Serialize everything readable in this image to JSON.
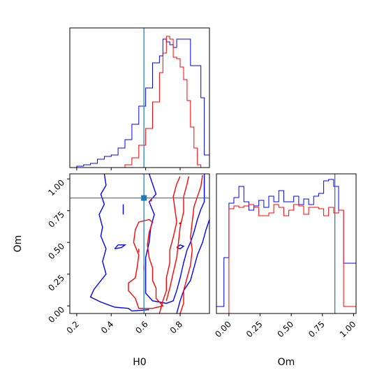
{
  "chart_data": {
    "type": "corner",
    "parameters": [
      "H0",
      "Om"
    ],
    "truths": {
      "H0": 0.59,
      "Om": 0.85
    },
    "colors": {
      "blue_series": "#0000ff",
      "red_series": "#ff0000",
      "truth": "#1f77b4"
    },
    "panels": [
      {
        "id": "h0-marginal",
        "type": "histogram-step",
        "xlim": [
          0.16,
          0.97
        ],
        "x_ticks": [
          0.2,
          0.4,
          0.6,
          0.8
        ],
        "show_tick_labels": false,
        "bin_edges": [
          0.16,
          0.2,
          0.24,
          0.28,
          0.32,
          0.36,
          0.4,
          0.44,
          0.48,
          0.52,
          0.56,
          0.6,
          0.64,
          0.68,
          0.7,
          0.72,
          0.74,
          0.76,
          0.78,
          0.8,
          0.82,
          0.84,
          0.86,
          0.88,
          0.9,
          0.92,
          0.94,
          0.97
        ],
        "series": [
          {
            "color": "blue",
            "values": [
              0,
              0.01,
              0.02,
              0.03,
              0.06,
              0.08,
              0.09,
              0.14,
              0.2,
              0.31,
              0.44,
              0.57,
              0.75,
              0.8,
              0.92,
              0.9,
              0.88,
              0.86,
              0.92,
              0.92,
              0.92,
              0.92,
              0.73,
              0.73,
              0.73,
              0.5,
              0.09
            ]
          },
          {
            "color": "red",
            "values": [
              0,
              0,
              0,
              0,
              0,
              0,
              0,
              0,
              0.02,
              0.07,
              0.16,
              0.28,
              0.47,
              0.68,
              0.82,
              0.94,
              0.92,
              0.79,
              0.78,
              0.72,
              0.63,
              0.48,
              0.29,
              0.14,
              0.02,
              0,
              0
            ]
          }
        ]
      },
      {
        "id": "h0-om-2d",
        "type": "contour",
        "xlim": [
          0.16,
          0.97
        ],
        "ylim": [
          -0.06,
          1.04
        ],
        "x_ticks": [
          0.2,
          0.4,
          0.6,
          0.8
        ],
        "x_tick_labels": [
          "0.2",
          "0.4",
          "0.6",
          "0.8"
        ],
        "y_ticks": [
          0.0,
          0.25,
          0.5,
          0.75,
          1.0
        ],
        "y_tick_labels": [
          "0.00",
          "0.25",
          "0.50",
          "0.75",
          "1.00"
        ],
        "xlabel": "H0",
        "ylabel": "Om",
        "contours": [
          {
            "color": "blue",
            "points": [
              [
                0.36,
                1.04
              ],
              [
                0.37,
                0.95
              ],
              [
                0.34,
                0.88
              ],
              [
                0.36,
                0.8
              ],
              [
                0.33,
                0.72
              ],
              [
                0.35,
                0.62
              ],
              [
                0.34,
                0.55
              ],
              [
                0.37,
                0.45
              ],
              [
                0.35,
                0.35
              ],
              [
                0.37,
                0.25
              ],
              [
                0.3,
                0.13
              ],
              [
                0.28,
                0.07
              ],
              [
                0.34,
                0.03
              ],
              [
                0.42,
                -0.01
              ],
              [
                0.5,
                -0.02
              ],
              [
                0.52,
                -0.04
              ],
              [
                0.62,
                -0.03
              ]
            ]
          },
          {
            "color": "blue",
            "points": [
              [
                0.62,
                1.04
              ],
              [
                0.64,
                0.96
              ],
              [
                0.66,
                0.88
              ],
              [
                0.62,
                0.82
              ],
              [
                0.65,
                0.72
              ],
              [
                0.63,
                0.62
              ],
              [
                0.62,
                0.5
              ],
              [
                0.6,
                0.38
              ],
              [
                0.6,
                0.26
              ],
              [
                0.6,
                0.1
              ],
              [
                0.64,
                0.04
              ],
              [
                0.72,
                0.02
              ],
              [
                0.76,
                0.04
              ],
              [
                0.78,
                0.12
              ],
              [
                0.8,
                0.22
              ],
              [
                0.82,
                0.34
              ],
              [
                0.84,
                0.44
              ],
              [
                0.86,
                0.5
              ],
              [
                0.88,
                0.58
              ],
              [
                0.9,
                0.68
              ],
              [
                0.92,
                0.76
              ],
              [
                0.94,
                0.82
              ],
              [
                0.94,
                0.92
              ],
              [
                0.94,
                1.04
              ]
            ]
          },
          {
            "color": "blue",
            "points": [
              [
                0.78,
                -0.06
              ],
              [
                0.8,
                0.04
              ],
              [
                0.82,
                0.12
              ],
              [
                0.86,
                0.2
              ],
              [
                0.88,
                0.3
              ],
              [
                0.9,
                0.4
              ],
              [
                0.93,
                0.5
              ],
              [
                0.95,
                0.6
              ],
              [
                0.97,
                0.68
              ]
            ]
          },
          {
            "color": "blue",
            "points": [
              [
                0.78,
                0.46
              ],
              [
                0.8,
                0.45
              ],
              [
                0.82,
                0.47
              ],
              [
                0.8,
                0.48
              ],
              [
                0.78,
                0.46
              ]
            ]
          },
          {
            "color": "blue",
            "points": [
              [
                0.42,
                0.45
              ],
              [
                0.46,
                0.46
              ],
              [
                0.48,
                0.48
              ],
              [
                0.44,
                0.48
              ],
              [
                0.42,
                0.45
              ]
            ]
          },
          {
            "color": "blue",
            "points": [
              [
                0.47,
                0.72
              ],
              [
                0.47,
                0.76
              ],
              [
                0.47,
                0.8
              ]
            ]
          },
          {
            "color": "red",
            "points": [
              [
                0.52,
                0.2
              ],
              [
                0.54,
                0.22
              ],
              [
                0.55,
                0.3
              ],
              [
                0.56,
                0.4
              ],
              [
                0.53,
                0.5
              ],
              [
                0.54,
                0.6
              ],
              [
                0.56,
                0.66
              ],
              [
                0.62,
                0.68
              ],
              [
                0.64,
                0.66
              ],
              [
                0.62,
                0.58
              ],
              [
                0.61,
                0.48
              ],
              [
                0.62,
                0.38
              ],
              [
                0.64,
                0.3
              ],
              [
                0.64,
                0.2
              ],
              [
                0.66,
                0.14
              ],
              [
                0.66,
                0.06
              ],
              [
                0.7,
                0.0
              ],
              [
                0.64,
                -0.02
              ],
              [
                0.56,
                -0.02
              ],
              [
                0.54,
                0.06
              ],
              [
                0.5,
                0.12
              ],
              [
                0.5,
                0.18
              ],
              [
                0.52,
                0.2
              ]
            ]
          },
          {
            "color": "red",
            "points": [
              [
                0.68,
                -0.06
              ],
              [
                0.7,
                0.04
              ],
              [
                0.72,
                0.12
              ],
              [
                0.72,
                0.22
              ],
              [
                0.74,
                0.34
              ],
              [
                0.74,
                0.44
              ],
              [
                0.76,
                0.54
              ],
              [
                0.78,
                0.66
              ],
              [
                0.77,
                0.76
              ],
              [
                0.76,
                0.86
              ],
              [
                0.78,
                0.96
              ],
              [
                0.8,
                1.02
              ]
            ]
          },
          {
            "color": "red",
            "points": [
              [
                0.8,
                -0.06
              ],
              [
                0.82,
                0.02
              ],
              [
                0.82,
                0.12
              ],
              [
                0.84,
                0.22
              ],
              [
                0.86,
                0.32
              ],
              [
                0.87,
                0.44
              ],
              [
                0.86,
                0.54
              ],
              [
                0.87,
                0.66
              ],
              [
                0.88,
                0.78
              ],
              [
                0.9,
                0.86
              ],
              [
                0.92,
                0.94
              ],
              [
                0.93,
                1.03
              ]
            ]
          },
          {
            "color": "red",
            "points": [
              [
                0.72,
                0.04
              ],
              [
                0.74,
                0.14
              ],
              [
                0.76,
                0.26
              ],
              [
                0.78,
                0.38
              ],
              [
                0.79,
                0.5
              ],
              [
                0.8,
                0.62
              ],
              [
                0.82,
                0.74
              ],
              [
                0.82,
                0.86
              ],
              [
                0.84,
                0.96
              ],
              [
                0.85,
                1.02
              ]
            ]
          },
          {
            "color": "red",
            "points": [
              [
                0.56,
                0.45
              ],
              [
                0.56,
                0.42
              ]
            ]
          },
          {
            "color": "red",
            "points": [
              [
                0.59,
                0.32
              ],
              [
                0.59,
                0.28
              ]
            ]
          },
          {
            "color": "red",
            "points": [
              [
                0.63,
                0.83
              ],
              [
                0.63,
                0.83
              ]
            ]
          },
          {
            "color": "red",
            "points": [
              [
                0.8,
                0.65
              ],
              [
                0.8,
                0.65
              ]
            ]
          }
        ]
      },
      {
        "id": "om-marginal",
        "type": "histogram-step",
        "xlim": [
          -0.1,
          1.02
        ],
        "x_ticks": [
          0.0,
          0.25,
          0.5,
          0.75,
          1.0
        ],
        "x_tick_labels": [
          "0.00",
          "0.25",
          "0.50",
          "0.75",
          "1.00"
        ],
        "xlabel": "Om",
        "bin_edges": [
          -0.1,
          -0.04,
          0.0,
          0.04,
          0.08,
          0.12,
          0.16,
          0.2,
          0.24,
          0.28,
          0.32,
          0.36,
          0.4,
          0.44,
          0.48,
          0.52,
          0.56,
          0.6,
          0.64,
          0.68,
          0.72,
          0.76,
          0.8,
          0.84,
          0.88,
          0.92,
          0.96,
          1.02
        ],
        "series": [
          {
            "color": "blue",
            "values": [
              0.05,
              0.4,
              0.79,
              0.83,
              0.91,
              0.8,
              0.74,
              0.77,
              0.81,
              0.76,
              0.84,
              0.8,
              0.88,
              0.8,
              0.8,
              0.84,
              0.78,
              0.82,
              0.78,
              0.84,
              0.86,
              0.95,
              0.96,
              0.91,
              0.74,
              0.36,
              0.36
            ]
          },
          {
            "color": "red",
            "values": [
              0,
              0,
              0.75,
              0.77,
              0.76,
              0.77,
              0.78,
              0.76,
              0.7,
              0.7,
              0.72,
              0.78,
              0.76,
              0.7,
              0.74,
              0.78,
              0.77,
              0.71,
              0.76,
              0.76,
              0.75,
              0.7,
              0.76,
              0.72,
              0.74,
              0.05,
              0.05
            ]
          }
        ]
      }
    ]
  }
}
